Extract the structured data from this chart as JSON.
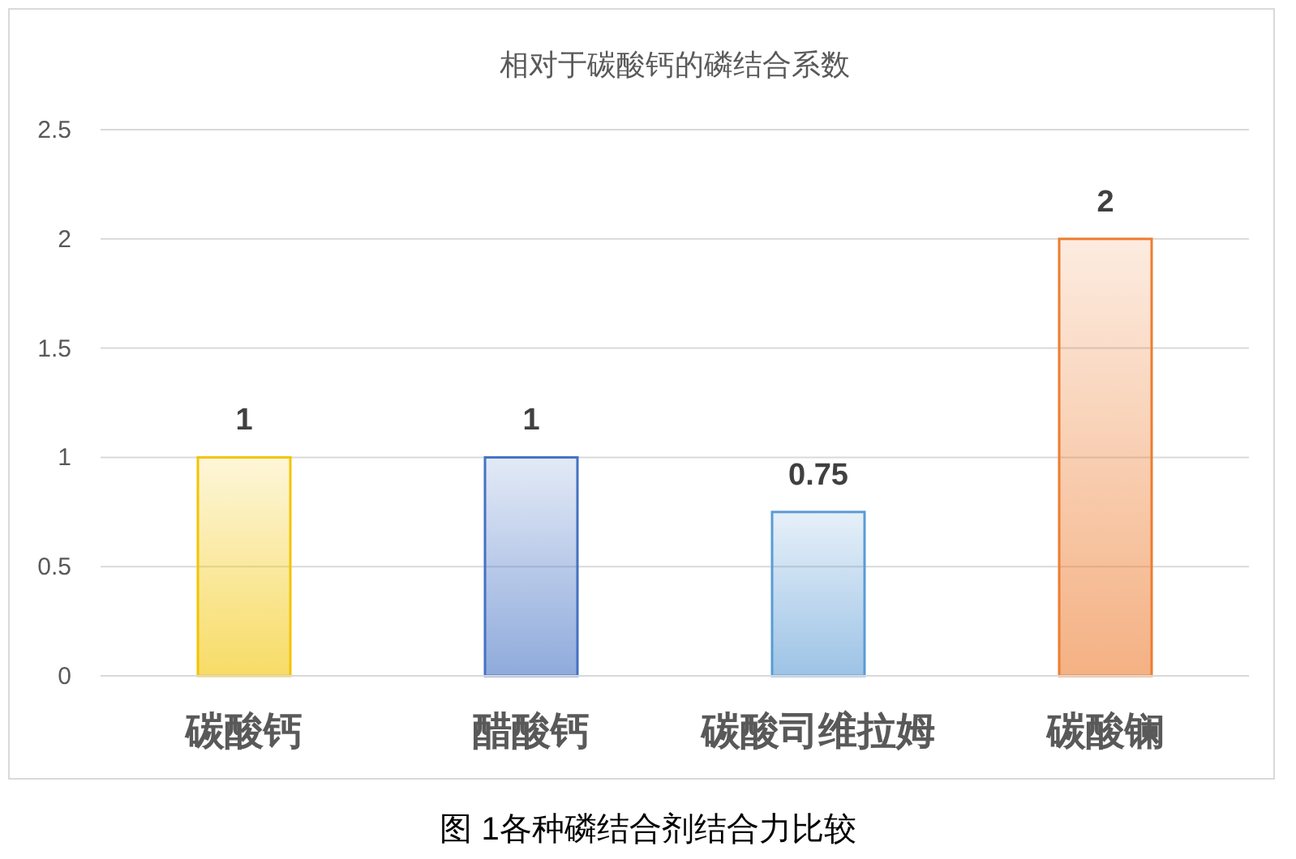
{
  "chart_data": {
    "type": "bar",
    "title": "相对于碳酸钙的磷结合系数",
    "categories": [
      "碳酸钙",
      "醋酸钙",
      "碳酸司维拉姆",
      "碳酸镧"
    ],
    "values": [
      1,
      1,
      0.75,
      2
    ],
    "colors": [
      "#f2c400",
      "#4472c4",
      "#5b9bd5",
      "#ed7d31"
    ],
    "ylim": [
      0,
      2.5
    ],
    "yticks": [
      0,
      0.5,
      1,
      1.5,
      2,
      2.5
    ],
    "grid": "y",
    "data_labels": true,
    "annotations": [
      "图 1各种磷结合剂结合力比较"
    ]
  }
}
